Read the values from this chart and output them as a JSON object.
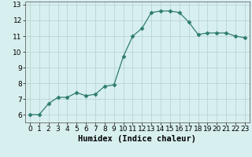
{
  "x": [
    0,
    1,
    2,
    3,
    4,
    5,
    6,
    7,
    8,
    9,
    10,
    11,
    12,
    13,
    14,
    15,
    16,
    17,
    18,
    19,
    20,
    21,
    22,
    23
  ],
  "y": [
    6.0,
    6.0,
    6.7,
    7.1,
    7.1,
    7.4,
    7.2,
    7.3,
    7.8,
    7.9,
    9.7,
    11.0,
    11.5,
    12.5,
    12.6,
    12.6,
    12.5,
    11.9,
    11.1,
    11.2,
    11.2,
    11.2,
    11.0,
    10.9
  ],
  "xlabel": "Humidex (Indice chaleur)",
  "ylim": [
    5.5,
    13.2
  ],
  "xlim": [
    -0.5,
    23.5
  ],
  "yticks": [
    6,
    7,
    8,
    9,
    10,
    11,
    12,
    13
  ],
  "xticks": [
    0,
    1,
    2,
    3,
    4,
    5,
    6,
    7,
    8,
    9,
    10,
    11,
    12,
    13,
    14,
    15,
    16,
    17,
    18,
    19,
    20,
    21,
    22,
    23
  ],
  "line_color": "#2e7d6e",
  "marker": "D",
  "marker_size": 2.5,
  "bg_color": "#d8eff0",
  "grid_color": "#b8d4d4",
  "tick_label_fontsize": 6.5,
  "xlabel_fontsize": 7.5
}
